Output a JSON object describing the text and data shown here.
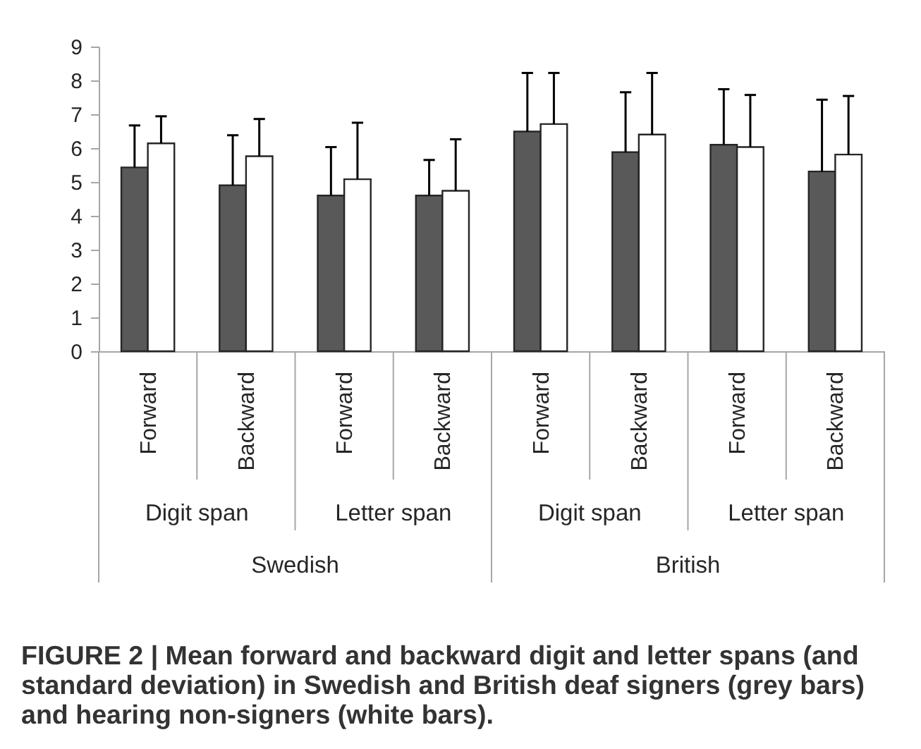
{
  "chart_data": {
    "type": "bar",
    "categories": [
      "Forward",
      "Backward",
      "Forward",
      "Backward",
      "Forward",
      "Backward",
      "Forward",
      "Backward"
    ],
    "series": [
      {
        "color": "#595959",
        "values": [
          5.43,
          4.9,
          4.6,
          4.6,
          6.49,
          5.88,
          6.1,
          5.31
        ],
        "errors": [
          [
            5.43,
            6.67
          ],
          [
            4.9,
            6.38
          ],
          [
            4.6,
            6.03
          ],
          [
            4.6,
            5.65
          ],
          [
            6.49,
            8.22
          ],
          [
            5.88,
            7.65
          ],
          [
            6.1,
            7.74
          ],
          [
            5.31,
            7.43
          ]
        ]
      },
      {
        "color": "#ffffff",
        "values": [
          6.14,
          5.76,
          5.08,
          4.74,
          6.71,
          6.4,
          6.03,
          5.81
        ],
        "errors": [
          [
            6.14,
            6.94
          ],
          [
            5.76,
            6.86
          ],
          [
            5.08,
            6.75
          ],
          [
            4.74,
            6.26
          ],
          [
            6.71,
            8.22
          ],
          [
            6.4,
            8.22
          ],
          [
            6.03,
            7.57
          ],
          [
            5.81,
            7.54
          ]
        ]
      }
    ],
    "ylim": [
      0,
      9
    ],
    "yticks": [
      0,
      1,
      2,
      3,
      4,
      5,
      6,
      7,
      8,
      9
    ],
    "grid": false,
    "annotations": [
      "Digit span",
      "Letter span",
      "Digit span",
      "Letter span",
      "Swedish",
      "British",
      "FIGURE 2 | Mean forward and backward digit and letter spans (and standard deviation) in Swedish and British deaf signers (grey bars) and hearing non-signers (white bars)."
    ]
  }
}
